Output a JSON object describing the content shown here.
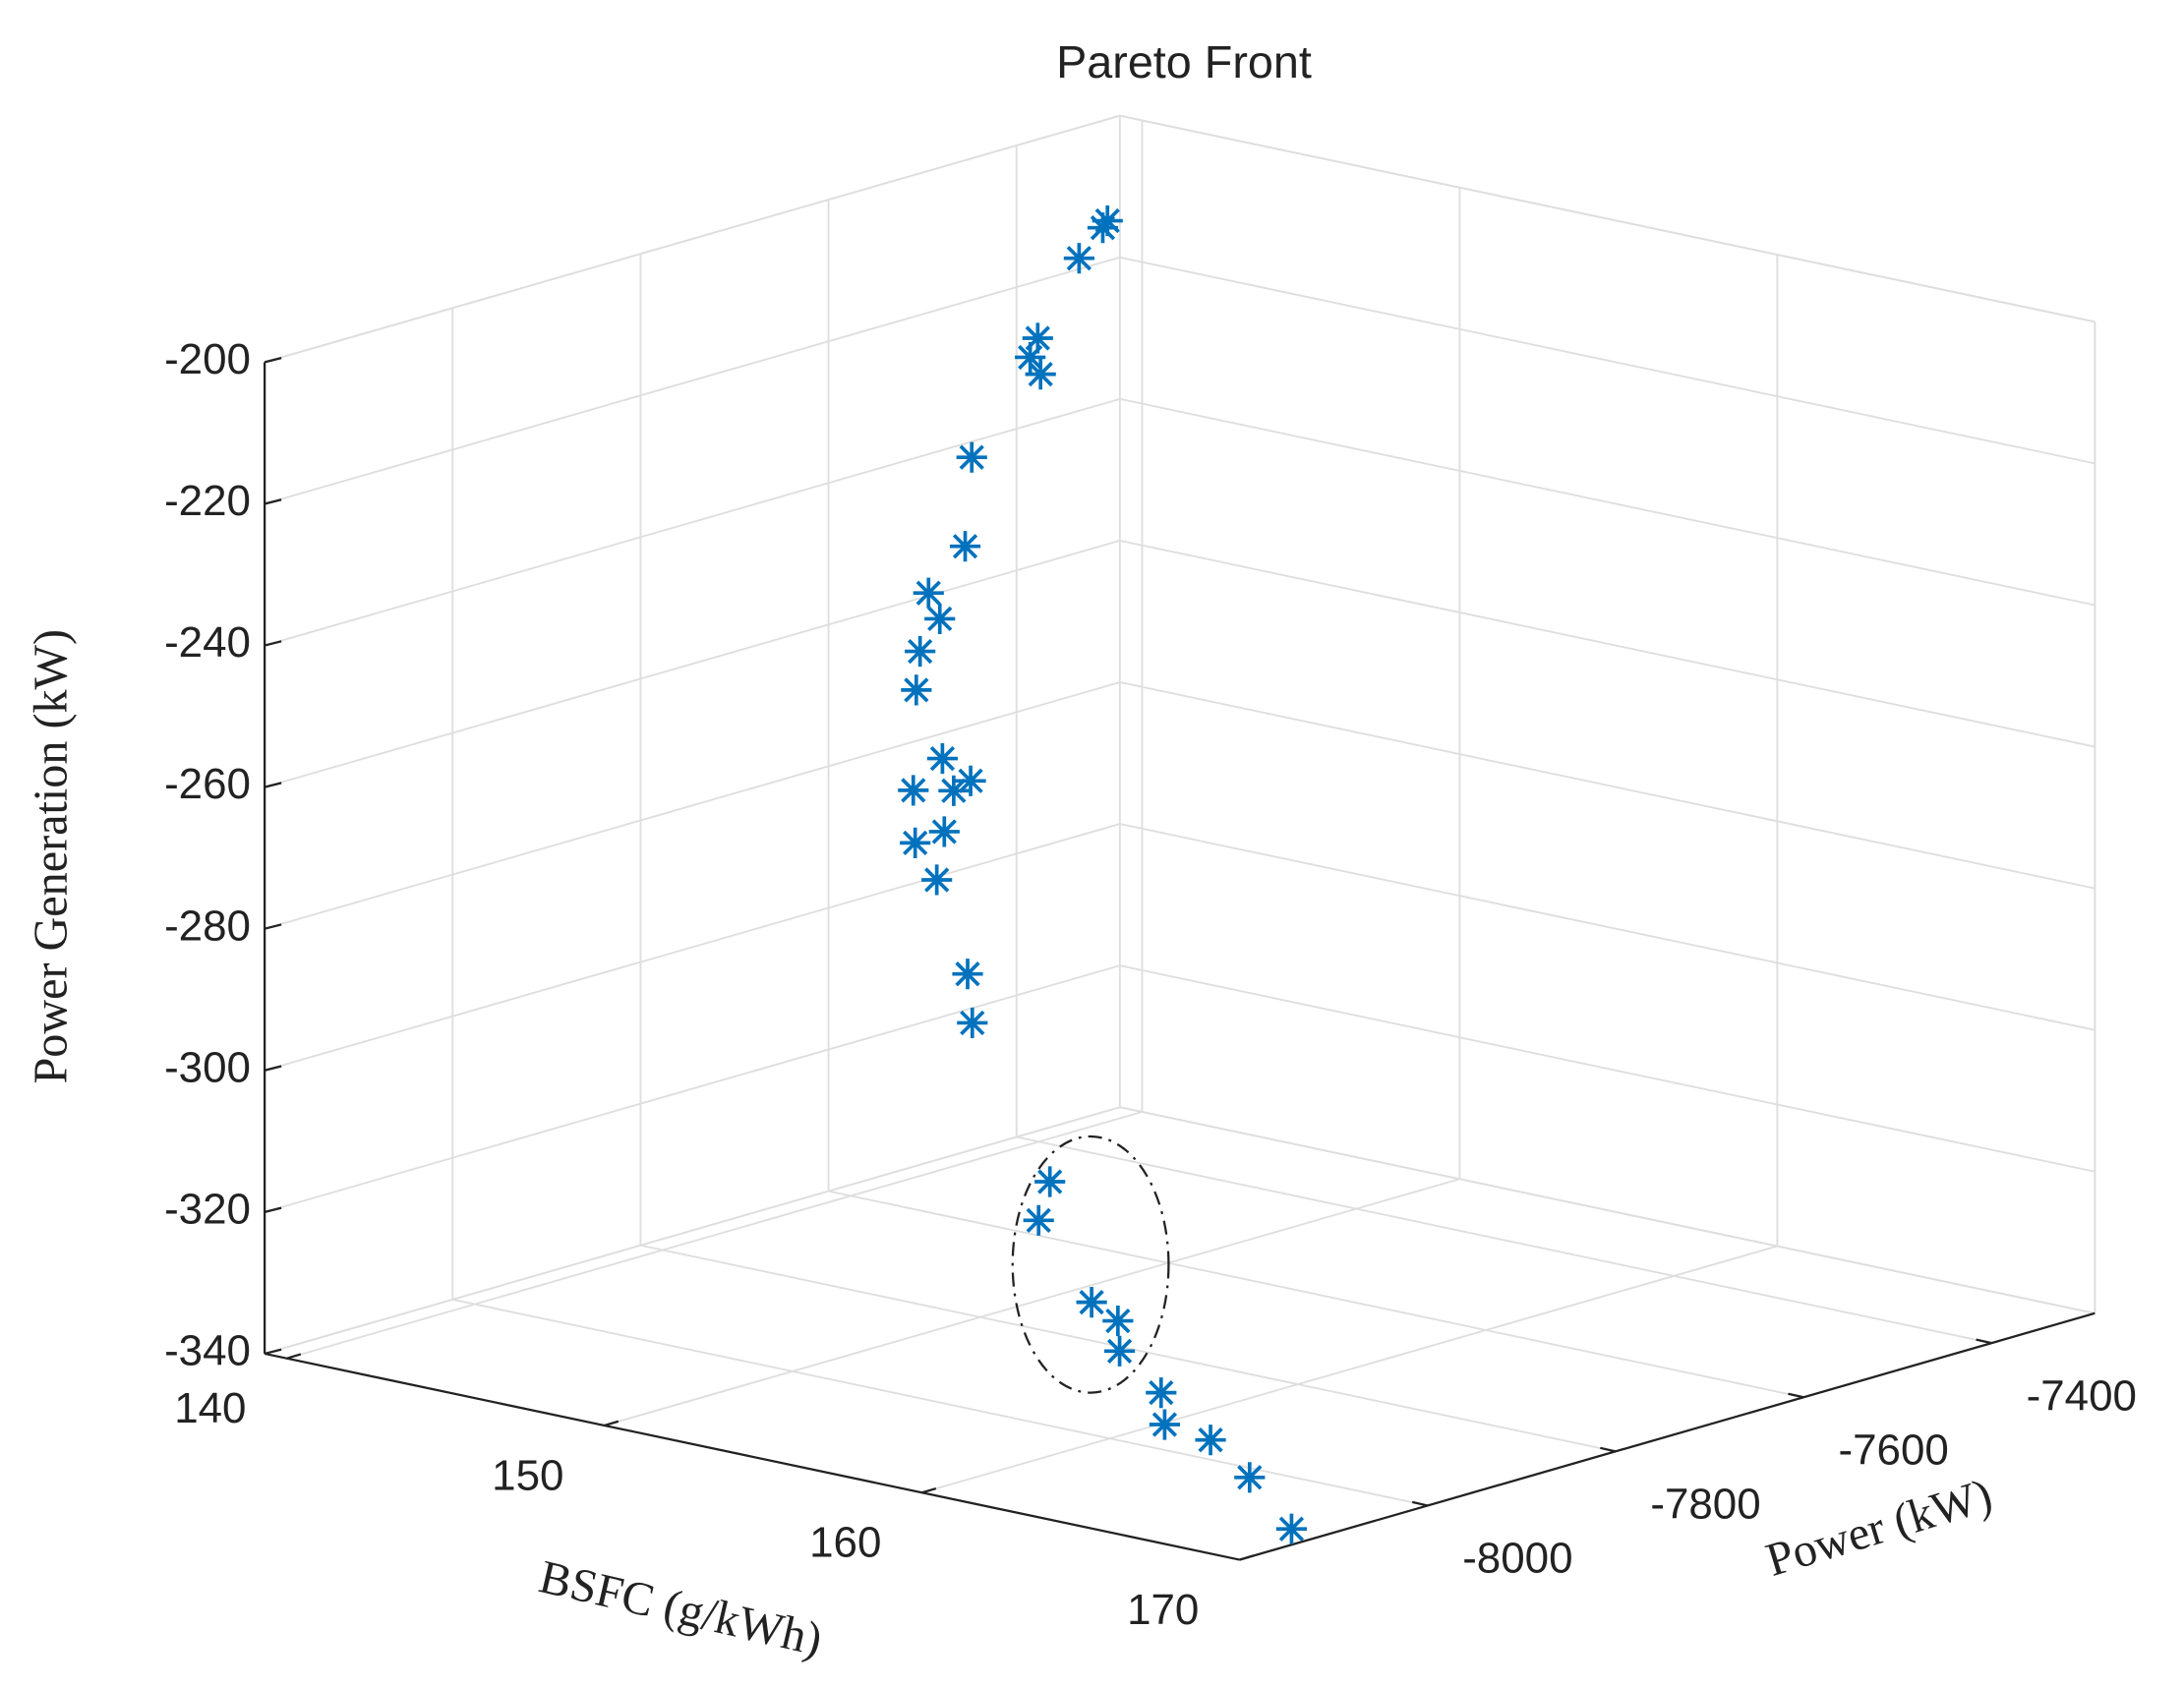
{
  "chart_data": {
    "type": "scatter3d",
    "title": "Pareto Front",
    "xlabel": "BSFC (g/kWh)",
    "ylabel": "Power (kW)",
    "zlabel": "Power Generation (kW)",
    "xlim": [
      139.3,
      170
    ],
    "ylim": [
      -8200,
      -7290
    ],
    "zlim": [
      -340,
      -200
    ],
    "xticks": [
      140,
      150,
      160,
      170
    ],
    "yticks": [
      -8000,
      -7800,
      -7600,
      -7400
    ],
    "zticks": [
      -340,
      -320,
      -300,
      -280,
      -260,
      -240,
      -220,
      -200
    ],
    "grid": true,
    "series": [
      {
        "color": "#0072BD",
        "x": [
          144,
          144,
          145,
          145,
          145,
          145,
          146,
          146,
          146,
          146,
          146,
          146,
          147,
          147,
          147,
          147,
          147,
          147,
          147,
          148,
          148,
          155,
          155,
          158,
          158,
          159,
          163,
          164,
          165,
          167,
          169
        ],
        "y": [
          -7462,
          -7467,
          -7526,
          -7570,
          -7578,
          -7567,
          -7674,
          -7681,
          -7720,
          -7708,
          -7729,
          -7733,
          -7739,
          -7770,
          -7727,
          -7709,
          -7737,
          -7768,
          -7745,
          -7746,
          -7741,
          -7895,
          -7907,
          -7952,
          -7924,
          -7956,
          -8047,
          -8077,
          -8062,
          -8088,
          -8111
        ],
        "z": [
          -203.8,
          -204.6,
          -205.7,
          -215.3,
          -217.7,
          -220.5,
          -227.2,
          -239.5,
          -244.6,
          -248.7,
          -252.5,
          -257.8,
          -266.3,
          -269.6,
          -271.3,
          -270.6,
          -276.7,
          -277.1,
          -283.2,
          -295.5,
          -302.6,
          -312.5,
          -317.5,
          -324.5,
          -328.2,
          -330.3,
          -328.9,
          -331.3,
          -333.1,
          -335.5,
          -340
        ]
      }
    ]
  }
}
